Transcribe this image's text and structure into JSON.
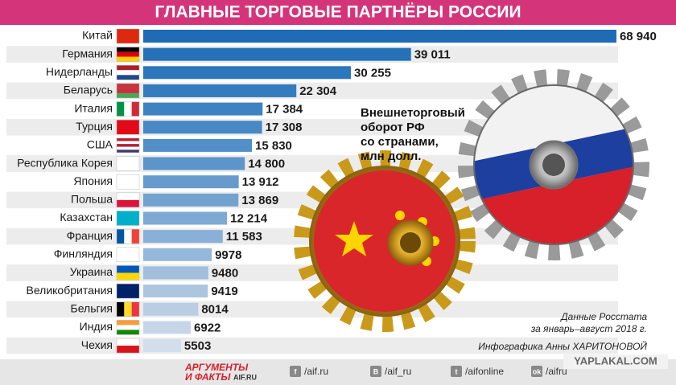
{
  "chart_data": {
    "type": "bar",
    "orientation": "horizontal",
    "title": "ГЛАВНЫЕ ТОРГОВЫЕ ПАРТНЁРЫ РОССИИ",
    "categories": [
      "Китай",
      "Германия",
      "Нидерланды",
      "Беларусь",
      "Италия",
      "Турция",
      "США",
      "Республика Корея",
      "Япония",
      "Польша",
      "Казахстан",
      "Франция",
      "Финляндия",
      "Украина",
      "Великобритания",
      "Бельгия",
      "Индия",
      "Чехия"
    ],
    "values": [
      68940,
      39011,
      30255,
      22304,
      17384,
      17308,
      15830,
      14800,
      13912,
      13869,
      12214,
      11583,
      9978,
      9480,
      9419,
      8014,
      6922,
      5503
    ],
    "value_labels": [
      "68 940",
      "39 011",
      "30 255",
      "22 304",
      "17 384",
      "17 308",
      "15 830",
      "14 800",
      "13 912",
      "13 869",
      "12 214",
      "11 583",
      "9978",
      "9480",
      "9419",
      "8014",
      "6922",
      "5503"
    ],
    "colors": [
      "#1f6bb5",
      "#2671b8",
      "#2d76bb",
      "#357cbe",
      "#3f82c1",
      "#4888c4",
      "#528ec7",
      "#5c95ca",
      "#679bcd",
      "#72a2d0",
      "#7da9d3",
      "#89b0d6",
      "#95b8da",
      "#a1bfdd",
      "#adc6e0",
      "#b9cee4",
      "#c6d6e8",
      "#d3deec"
    ],
    "xlim": [
      0,
      70000
    ],
    "annotation": [
      "Внешнеторговый",
      "оборот РФ",
      "со странами,",
      "млн долл."
    ],
    "source": [
      "Данные Росстата",
      "за январь–август 2018 г."
    ],
    "credit": "Инфографика Анны ХАРИТОНОВОЙ"
  },
  "footer": {
    "logo": [
      "АРГУМЕНТЫ",
      "И ФАКТЫ",
      "AIF.RU"
    ],
    "social": [
      {
        "icon": "f",
        "text": "/aif.ru"
      },
      {
        "icon": "B",
        "text": "/aif_ru"
      },
      {
        "icon": "t",
        "text": "/aifonline"
      },
      {
        "icon": "ok",
        "text": "/aifru"
      }
    ],
    "watermark": "YAPLAKAL.COM"
  }
}
